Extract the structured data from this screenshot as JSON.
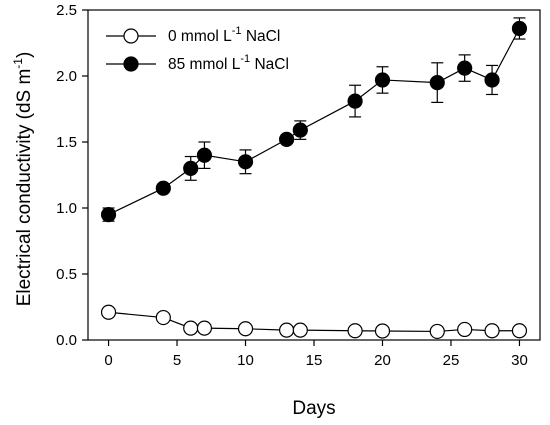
{
  "chart_data": {
    "type": "line",
    "xlabel": "Days",
    "ylabel": "Electrical conductivity (dS m",
    "ylabel_sup": "-1",
    "ylabel_close": ")",
    "xlim": [
      -1.5,
      31.5
    ],
    "ylim": [
      0,
      2.5
    ],
    "x_ticks": [
      0,
      5,
      10,
      15,
      20,
      25,
      30
    ],
    "x_tick_labels": [
      "0",
      "5",
      "10",
      "15",
      "20",
      "25",
      "30"
    ],
    "y_ticks": [
      0,
      0.5,
      1.0,
      1.5,
      2.0,
      2.5
    ],
    "y_tick_labels": [
      "0.0",
      "0.5",
      "1.0",
      "1.5",
      "2.0",
      "2.5"
    ],
    "grid": false,
    "legend_placement": "top-left",
    "series": [
      {
        "name": "0 mmol L",
        "name_sup": "-1",
        "name_tail": " NaCl",
        "marker": "open-circle",
        "x": [
          0,
          4,
          6,
          7,
          10,
          13,
          14,
          18,
          20,
          24,
          26,
          28,
          30
        ],
        "y": [
          0.21,
          0.17,
          0.09,
          0.09,
          0.085,
          0.075,
          0.075,
          0.07,
          0.068,
          0.065,
          0.08,
          0.07,
          0.07
        ],
        "err": [
          0,
          0,
          0,
          0,
          0,
          0,
          0,
          0,
          0,
          0,
          0,
          0,
          0
        ]
      },
      {
        "name": "85 mmol L",
        "name_sup": "-1",
        "name_tail": " NaCl",
        "marker": "filled-circle",
        "x": [
          0,
          4,
          6,
          7,
          10,
          13,
          14,
          18,
          20,
          24,
          26,
          28,
          30
        ],
        "y": [
          0.95,
          1.15,
          1.3,
          1.4,
          1.35,
          1.52,
          1.59,
          1.81,
          1.97,
          1.95,
          2.06,
          1.97,
          2.36
        ],
        "err": [
          0.05,
          0.03,
          0.09,
          0.1,
          0.09,
          0.03,
          0.07,
          0.12,
          0.1,
          0.15,
          0.1,
          0.11,
          0.08
        ]
      }
    ]
  }
}
